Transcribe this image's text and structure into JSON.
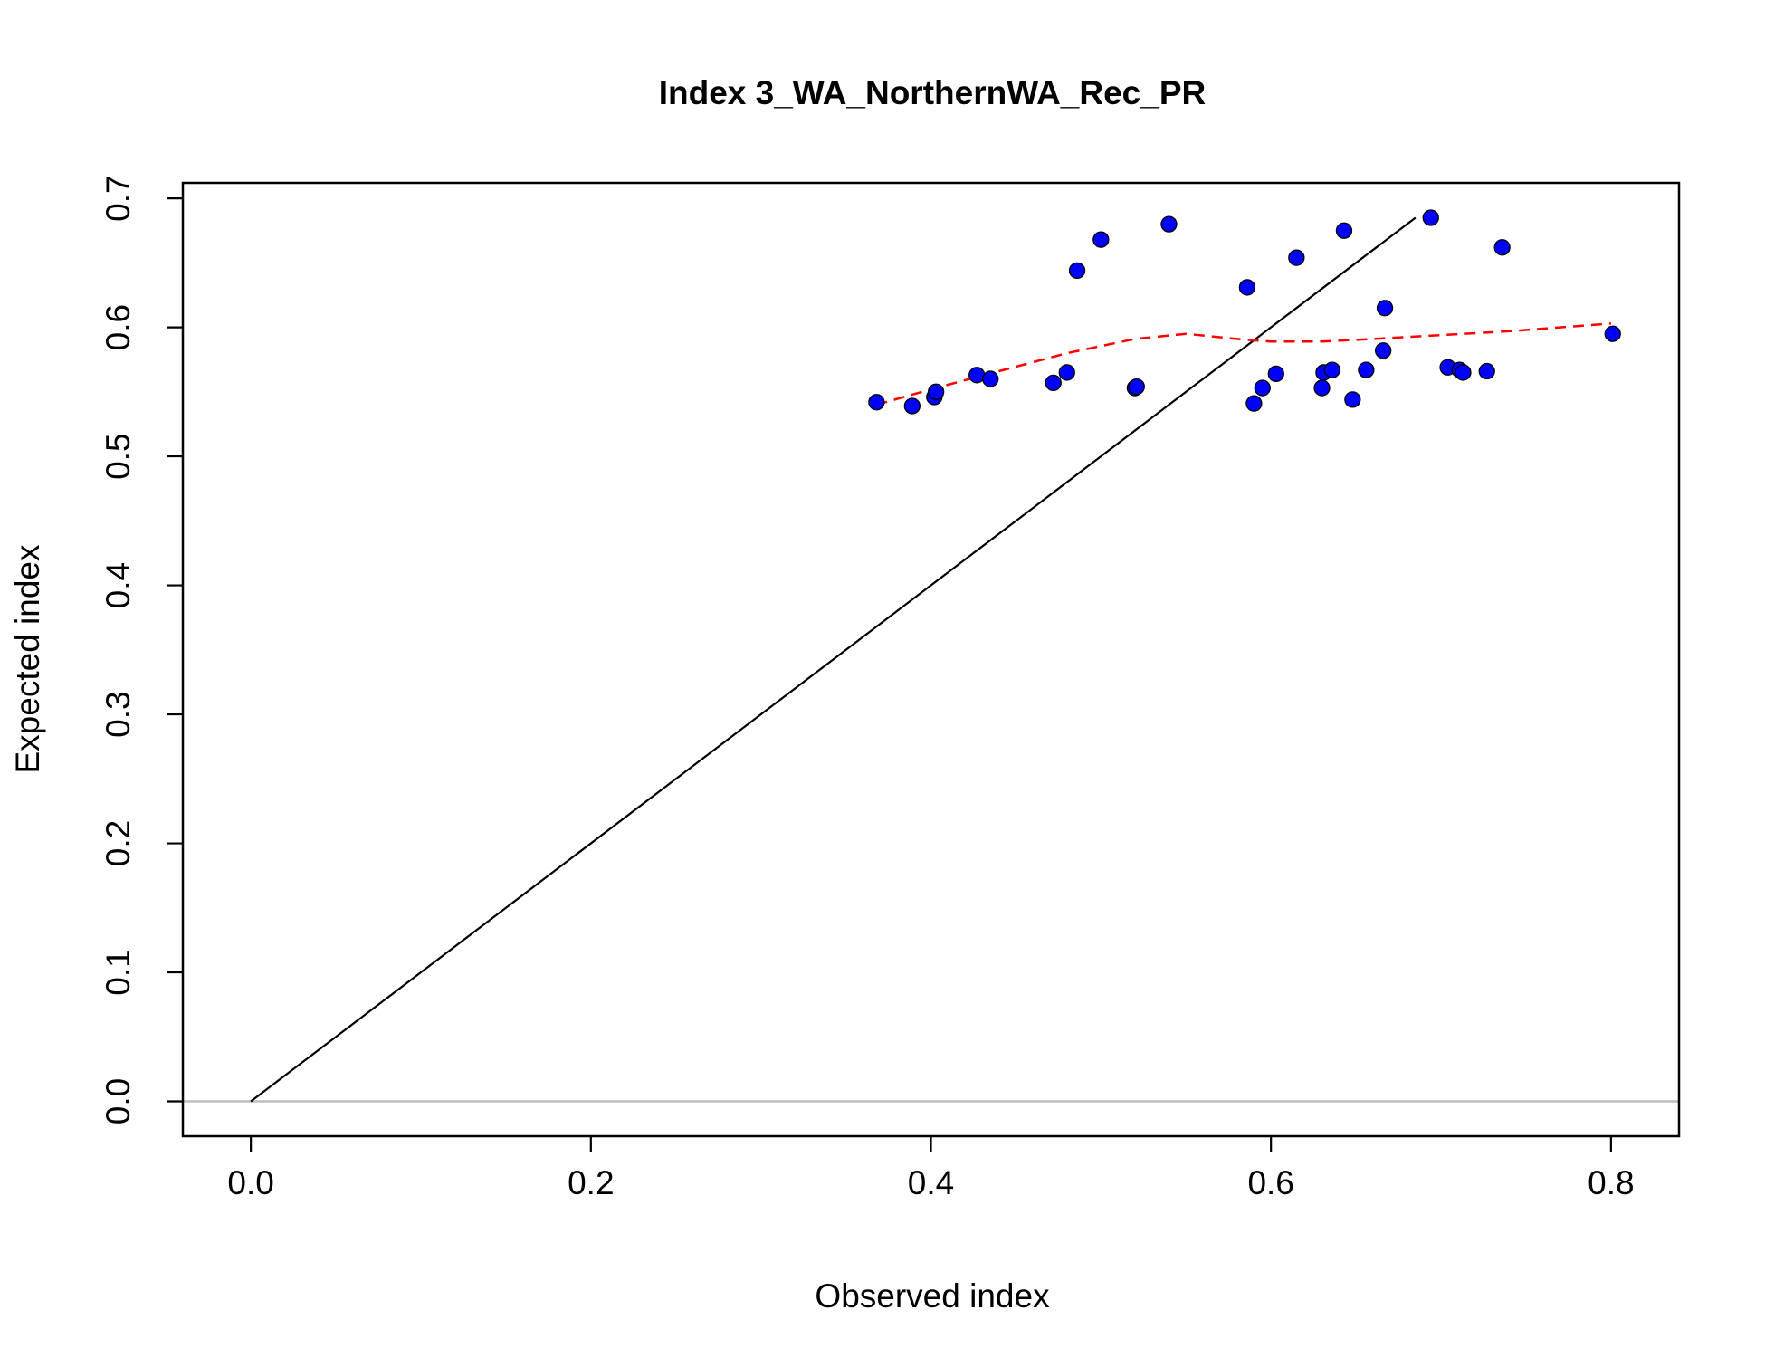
{
  "chart_data": {
    "type": "scatter",
    "title": "Index 3_WA_NorthernWA_Rec_PR",
    "xlabel": "Observed index",
    "ylabel": "Expected index",
    "xlim": [
      -0.04,
      0.84
    ],
    "ylim": [
      -0.027,
      0.712
    ],
    "xticks": [
      "0.0",
      "0.2",
      "0.4",
      "0.6",
      "0.8"
    ],
    "yticks": [
      "0.0",
      "0.1",
      "0.2",
      "0.3",
      "0.4",
      "0.5",
      "0.6",
      "0.7"
    ],
    "grid": false,
    "legend": "none",
    "colors": {
      "points": "#0000ff",
      "point_outline": "#000000",
      "identity_line": "#000000",
      "smoother": "#ff0000",
      "zero_line": "#bebebe"
    },
    "points": [
      {
        "x": 0.368,
        "y": 0.542
      },
      {
        "x": 0.389,
        "y": 0.539
      },
      {
        "x": 0.402,
        "y": 0.546
      },
      {
        "x": 0.403,
        "y": 0.55
      },
      {
        "x": 0.427,
        "y": 0.563
      },
      {
        "x": 0.435,
        "y": 0.56
      },
      {
        "x": 0.472,
        "y": 0.557
      },
      {
        "x": 0.48,
        "y": 0.565
      },
      {
        "x": 0.486,
        "y": 0.644
      },
      {
        "x": 0.5,
        "y": 0.668
      },
      {
        "x": 0.52,
        "y": 0.553
      },
      {
        "x": 0.521,
        "y": 0.554
      },
      {
        "x": 0.54,
        "y": 0.68
      },
      {
        "x": 0.586,
        "y": 0.631
      },
      {
        "x": 0.59,
        "y": 0.541
      },
      {
        "x": 0.595,
        "y": 0.553
      },
      {
        "x": 0.603,
        "y": 0.564
      },
      {
        "x": 0.615,
        "y": 0.654
      },
      {
        "x": 0.63,
        "y": 0.553
      },
      {
        "x": 0.631,
        "y": 0.565
      },
      {
        "x": 0.636,
        "y": 0.567
      },
      {
        "x": 0.643,
        "y": 0.675
      },
      {
        "x": 0.648,
        "y": 0.544
      },
      {
        "x": 0.656,
        "y": 0.567
      },
      {
        "x": 0.666,
        "y": 0.582
      },
      {
        "x": 0.667,
        "y": 0.615
      },
      {
        "x": 0.694,
        "y": 0.685
      },
      {
        "x": 0.704,
        "y": 0.569
      },
      {
        "x": 0.711,
        "y": 0.567
      },
      {
        "x": 0.713,
        "y": 0.565
      },
      {
        "x": 0.727,
        "y": 0.566
      },
      {
        "x": 0.736,
        "y": 0.662
      },
      {
        "x": 0.801,
        "y": 0.595
      }
    ],
    "identity_line": {
      "x": [
        0.0,
        0.685
      ],
      "y": [
        0.0,
        0.685
      ]
    },
    "smoother": {
      "x": [
        0.368,
        0.4,
        0.44,
        0.48,
        0.52,
        0.55,
        0.58,
        0.6,
        0.63,
        0.66,
        0.7,
        0.74,
        0.78,
        0.8
      ],
      "y": [
        0.54,
        0.552,
        0.566,
        0.58,
        0.591,
        0.595,
        0.591,
        0.589,
        0.589,
        0.591,
        0.594,
        0.597,
        0.601,
        0.603
      ]
    },
    "zero_line": {
      "y": 0.0
    }
  }
}
